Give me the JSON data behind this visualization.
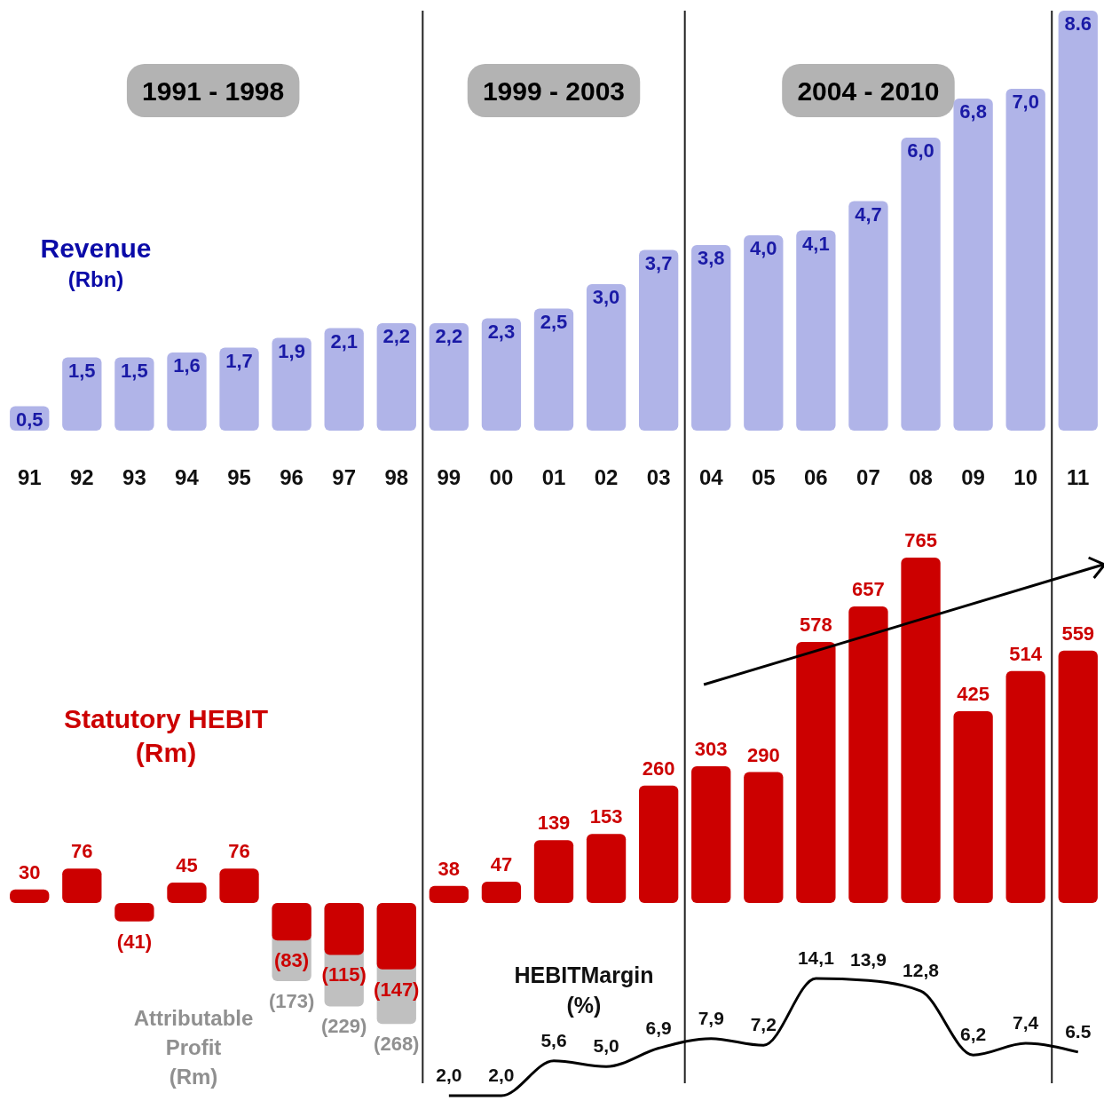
{
  "chart_data": [
    {
      "type": "bar",
      "title": "Revenue",
      "subtitle": "(Rbn)",
      "categories": [
        "91",
        "92",
        "93",
        "94",
        "95",
        "96",
        "97",
        "98",
        "99",
        "00",
        "01",
        "02",
        "03",
        "04",
        "05",
        "06",
        "07",
        "08",
        "09",
        "10",
        "11"
      ],
      "values": [
        0.5,
        1.5,
        1.5,
        1.6,
        1.7,
        1.9,
        2.1,
        2.2,
        2.2,
        2.3,
        2.5,
        3.0,
        3.7,
        3.8,
        4.0,
        4.1,
        4.7,
        6.0,
        6.8,
        7.0,
        8.6
      ],
      "value_labels": [
        "0,5",
        "1,5",
        "1,5",
        "1,6",
        "1,7",
        "1,9",
        "2,1",
        "2,2",
        "2,2",
        "2,3",
        "2,5",
        "3,0",
        "3,7",
        "3,8",
        "4,0",
        "4,1",
        "4,7",
        "6,0",
        "6,8",
        "7,0",
        "8.6"
      ],
      "color": "#b0b4e8",
      "annotations": [
        "1991 - 1998",
        "1999 - 2003",
        "2004 - 2010"
      ]
    },
    {
      "type": "bar",
      "tick_labels": false,
      "categories": [
        "91",
        "92",
        "93",
        "94",
        "95",
        "96",
        "97",
        "98",
        "99",
        "00",
        "01",
        "02",
        "03",
        "04",
        "05",
        "06",
        "07",
        "08",
        "09",
        "10",
        "11"
      ],
      "series": [
        {
          "name": "Statutory HEBIT (Rm)",
          "color": "#cc0000",
          "values": [
            30,
            76,
            -41,
            45,
            76,
            -83,
            -115,
            -147,
            38,
            47,
            139,
            153,
            260,
            303,
            290,
            578,
            657,
            765,
            425,
            514,
            559
          ],
          "value_labels": [
            "30",
            "76",
            "(41)",
            "45",
            "76",
            "(83)",
            "(115)",
            "(147)",
            "38",
            "47",
            "139",
            "153",
            "260",
            "303",
            "290",
            "578",
            "657",
            "765",
            "425",
            "514",
            "559"
          ]
        },
        {
          "name": "Attributable Profit (Rm)",
          "color": "#c0c0c0",
          "values": [
            null,
            null,
            null,
            null,
            null,
            -173,
            -229,
            -268,
            null,
            null,
            null,
            null,
            null,
            null,
            null,
            null,
            null,
            null,
            null,
            null,
            null
          ],
          "value_labels": [
            null,
            null,
            null,
            null,
            null,
            "(173)",
            "(229)",
            "(268)",
            null,
            null,
            null,
            null,
            null,
            null,
            null,
            null,
            null,
            null,
            null,
            null,
            null
          ]
        }
      ]
    },
    {
      "type": "line",
      "title": "HEBITMargin",
      "subtitle": "(%)",
      "tick_labels": false,
      "categories": [
        "99",
        "00",
        "01",
        "02",
        "03",
        "04",
        "05",
        "06",
        "07",
        "08",
        "09",
        "10",
        "11"
      ],
      "values": [
        2.0,
        2.0,
        5.6,
        5.0,
        6.9,
        7.9,
        7.2,
        14.1,
        13.9,
        12.8,
        6.2,
        7.4,
        6.5
      ],
      "value_labels": [
        "2,0",
        "2,0",
        "5,6",
        "5,0",
        "6,9",
        "7,9",
        "7,2",
        "14,1",
        "13,9",
        "12,8",
        "6,2",
        "7,4",
        "6.5"
      ],
      "color": "#000000"
    }
  ]
}
